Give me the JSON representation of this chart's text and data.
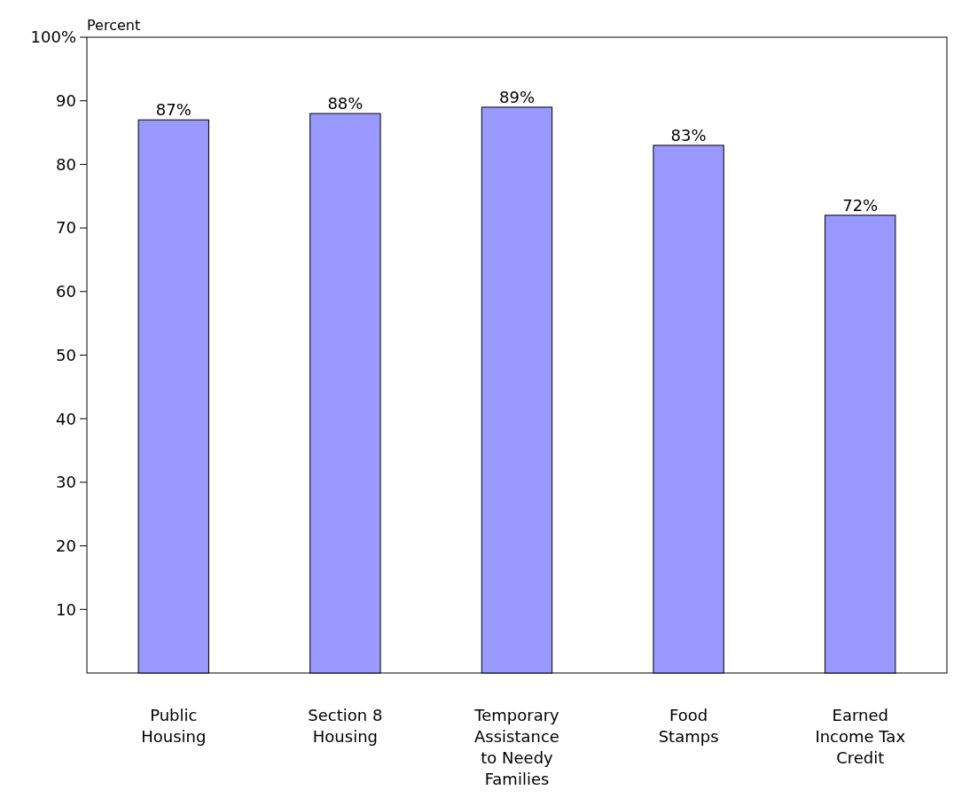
{
  "chart_data": {
    "type": "bar",
    "ylabel": "Percent",
    "categories": [
      "Public Housing",
      "Section 8 Housing",
      "Temporary Assistance to Needy Families",
      "Food Stamps",
      "Earned Income Tax Credit"
    ],
    "values": [
      87,
      88,
      89,
      83,
      72
    ],
    "value_labels": [
      "87%",
      "88%",
      "89%",
      "83%",
      "72%"
    ],
    "color": "#9999ff",
    "ylim": [
      0,
      100
    ],
    "yticks": [
      {
        "value": 100,
        "label": "100%"
      },
      90,
      80,
      70,
      60,
      50,
      40,
      30,
      20,
      10
    ],
    "grid": false
  }
}
